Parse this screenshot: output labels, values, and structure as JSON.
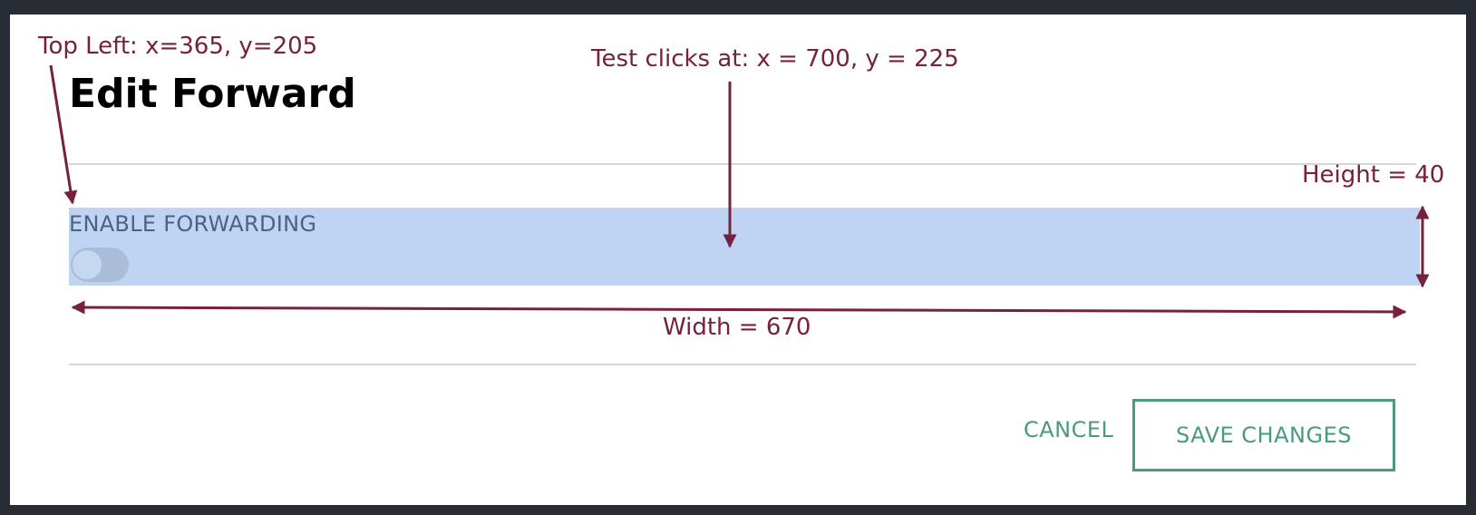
{
  "dialog": {
    "title": "Edit Forward",
    "field_label": "ENABLE FORWARDING",
    "toggle_state": "off",
    "cancel_label": "CANCEL",
    "save_label": "SAVE CHANGES"
  },
  "annotations": {
    "top_left": "Top Left: x=365, y=205",
    "test_click": "Test clicks at: x = 700, y = 225",
    "height": "Height = 40",
    "width": "Width = 670"
  },
  "colors": {
    "backdrop": "#282d35",
    "dialog_bg": "#ffffff",
    "highlight": "#bfd4f2",
    "label": "#4b6186",
    "accent": "#4a9a80",
    "annotation": "#76213f"
  }
}
